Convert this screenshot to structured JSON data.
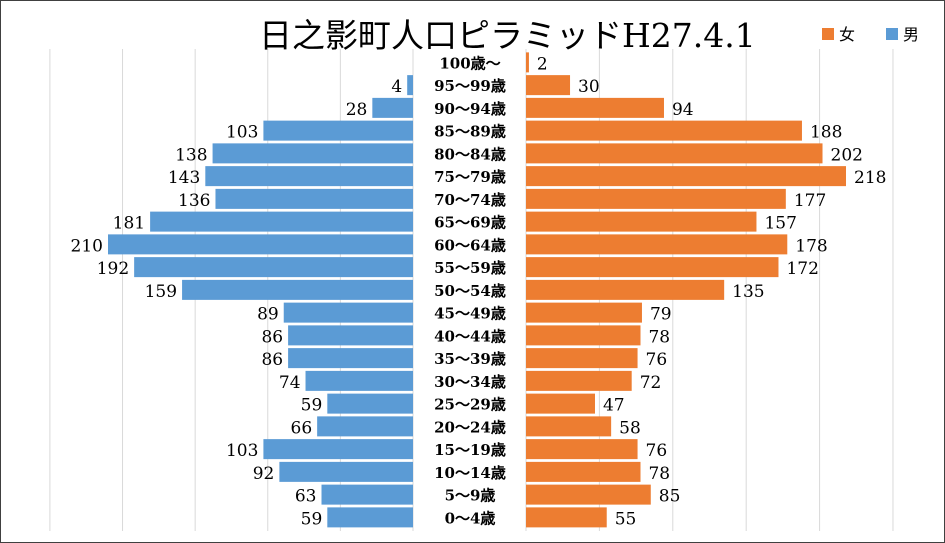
{
  "chart_data": {
    "type": "bar",
    "orientation": "horizontal-pyramid",
    "title": "日之影町人口ピラミッドH27.4.1",
    "legend_position": "top-right",
    "grid": true,
    "xlim_left": [
      0,
      210
    ],
    "xlim_right": [
      0,
      218
    ],
    "categories": [
      "100歳～",
      "95～99歳",
      "90～94歳",
      "85～89歳",
      "80～84歳",
      "75～79歳",
      "70～74歳",
      "65～69歳",
      "60～64歳",
      "55～59歳",
      "50～54歳",
      "45～49歳",
      "40～44歳",
      "35～39歳",
      "30～34歳",
      "25～29歳",
      "20～24歳",
      "15～19歳",
      "10～14歳",
      "5～9歳",
      "0～4歳"
    ],
    "series": [
      {
        "name": "女",
        "side": "right",
        "color": "#ED7D31",
        "values": [
          2,
          30,
          94,
          188,
          202,
          218,
          177,
          157,
          178,
          172,
          135,
          79,
          78,
          76,
          72,
          47,
          58,
          76,
          78,
          85,
          55
        ]
      },
      {
        "name": "男",
        "side": "left",
        "color": "#5B9BD5",
        "values": [
          null,
          4,
          28,
          103,
          138,
          143,
          136,
          181,
          210,
          192,
          159,
          89,
          86,
          86,
          74,
          59,
          66,
          103,
          92,
          63,
          59
        ]
      }
    ]
  }
}
